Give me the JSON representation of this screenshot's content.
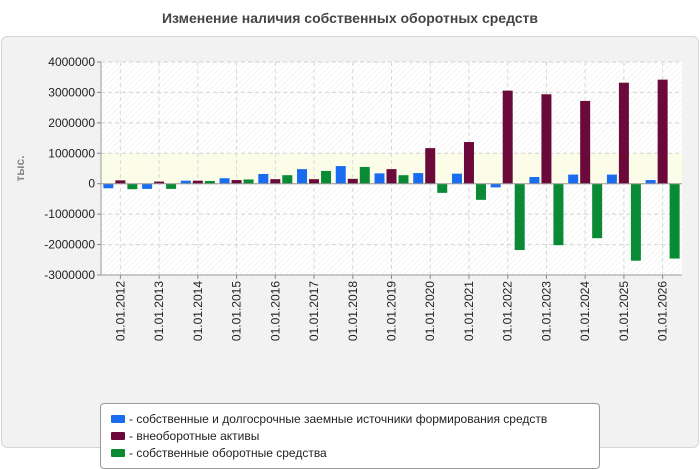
{
  "title": "Изменение наличия собственных оборотных средств",
  "chart_data": {
    "type": "bar",
    "title": "Изменение наличия собственных оборотных средств",
    "ylabel": "тыс.",
    "xlabel": "",
    "ylim": [
      -3000000,
      4000000
    ],
    "yticks": [
      4000000,
      3000000,
      2000000,
      1000000,
      0,
      -1000000,
      -2000000,
      -3000000
    ],
    "grid": true,
    "legend_position": "bottom",
    "categories": [
      "01.01.2012",
      "01.01.2013",
      "01.01.2014",
      "01.01.2015",
      "01.01.2016",
      "01.01.2017",
      "01.01.2018",
      "01.01.2019",
      "01.01.2020",
      "01.01.2021",
      "01.01.2022",
      "01.01.2023",
      "01.01.2024",
      "01.01.2025",
      "01.01.2026"
    ],
    "series": [
      {
        "name": "- собственные и долгосрочные заемные источники формирования средств",
        "color": "#1a6cf0",
        "values": [
          -150000,
          -170000,
          100000,
          180000,
          320000,
          480000,
          580000,
          340000,
          350000,
          330000,
          -120000,
          220000,
          300000,
          300000,
          120000
        ]
      },
      {
        "name": "- внеоборотные активы",
        "color": "#6b0a3a",
        "values": [
          110000,
          70000,
          100000,
          120000,
          150000,
          150000,
          160000,
          480000,
          1170000,
          1370000,
          3060000,
          2940000,
          2720000,
          3320000,
          3420000
        ]
      },
      {
        "name": "- собственные оборотные средства",
        "color": "#0a8a35",
        "values": [
          -180000,
          -170000,
          90000,
          140000,
          280000,
          420000,
          550000,
          280000,
          -300000,
          -530000,
          -2180000,
          -2020000,
          -1790000,
          -2530000,
          -2460000
        ]
      }
    ]
  }
}
